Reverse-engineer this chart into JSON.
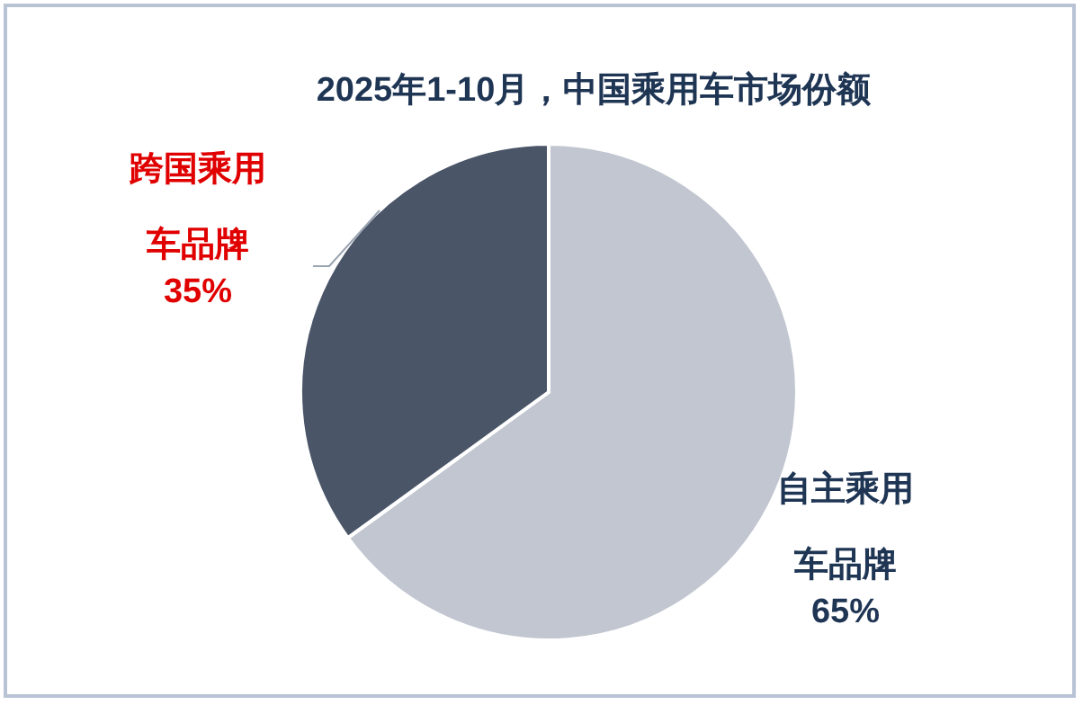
{
  "chart_data": {
    "type": "pie",
    "title": "2025年1-10月，中国乘用车市场份额",
    "categories": [
      "自主乘用车品牌",
      "跨国乘用车品牌"
    ],
    "values": [
      65,
      35
    ],
    "value_labels": [
      "65%",
      "35%"
    ],
    "colors": [
      "#c1c6d0",
      "#4a5568"
    ]
  }
}
